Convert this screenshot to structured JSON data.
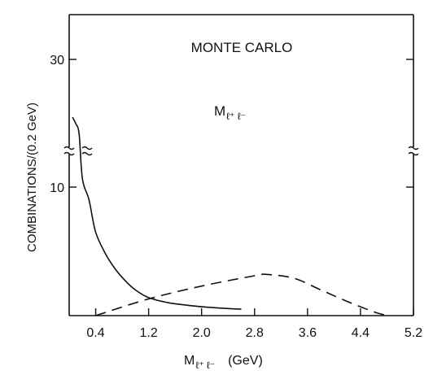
{
  "chart_data": {
    "type": "line",
    "title": "MONTE CARLO",
    "xlabel_main": "M",
    "xlabel_sub": "ℓ⁺ ℓ⁻",
    "xlabel_unit": "(GeV)",
    "ylabel": "COMBINATIONS/(0.2 GeV)",
    "annotation_main": "M",
    "annotation_sub": "ℓ⁺ ℓ⁻",
    "xlim": [
      0.0,
      5.2
    ],
    "x_ticks": [
      0.4,
      1.2,
      2.0,
      2.8,
      3.6,
      4.4,
      5.2
    ],
    "x_tick_labels": [
      "0.4",
      "1.2",
      "2.0",
      "2.8",
      "3.6",
      "4.4",
      "5.2"
    ],
    "y_scale": "broken (axis break between 10 and 30)",
    "y_ticks": [
      10,
      30
    ],
    "y_tick_labels": [
      "10",
      "30"
    ],
    "grid": false,
    "series": [
      {
        "style": "solid",
        "x": [
          0.05,
          0.1,
          0.15,
          0.2,
          0.3,
          0.4,
          0.55,
          0.7,
          0.85,
          1.0,
          1.2,
          1.5,
          1.8,
          2.1,
          2.4,
          2.6
        ],
        "y": [
          25.5,
          25.0,
          24.2,
          12.0,
          9.0,
          6.5,
          4.8,
          3.6,
          2.7,
          2.0,
          1.4,
          1.0,
          0.8,
          0.65,
          0.55,
          0.5
        ]
      },
      {
        "style": "dashed",
        "x": [
          0.4,
          1.2,
          2.0,
          2.8,
          3.0,
          3.4,
          3.8,
          4.2,
          4.6,
          4.8
        ],
        "y": [
          0.0,
          1.3,
          2.3,
          3.1,
          3.2,
          2.9,
          2.0,
          1.1,
          0.3,
          0.0
        ]
      }
    ]
  }
}
